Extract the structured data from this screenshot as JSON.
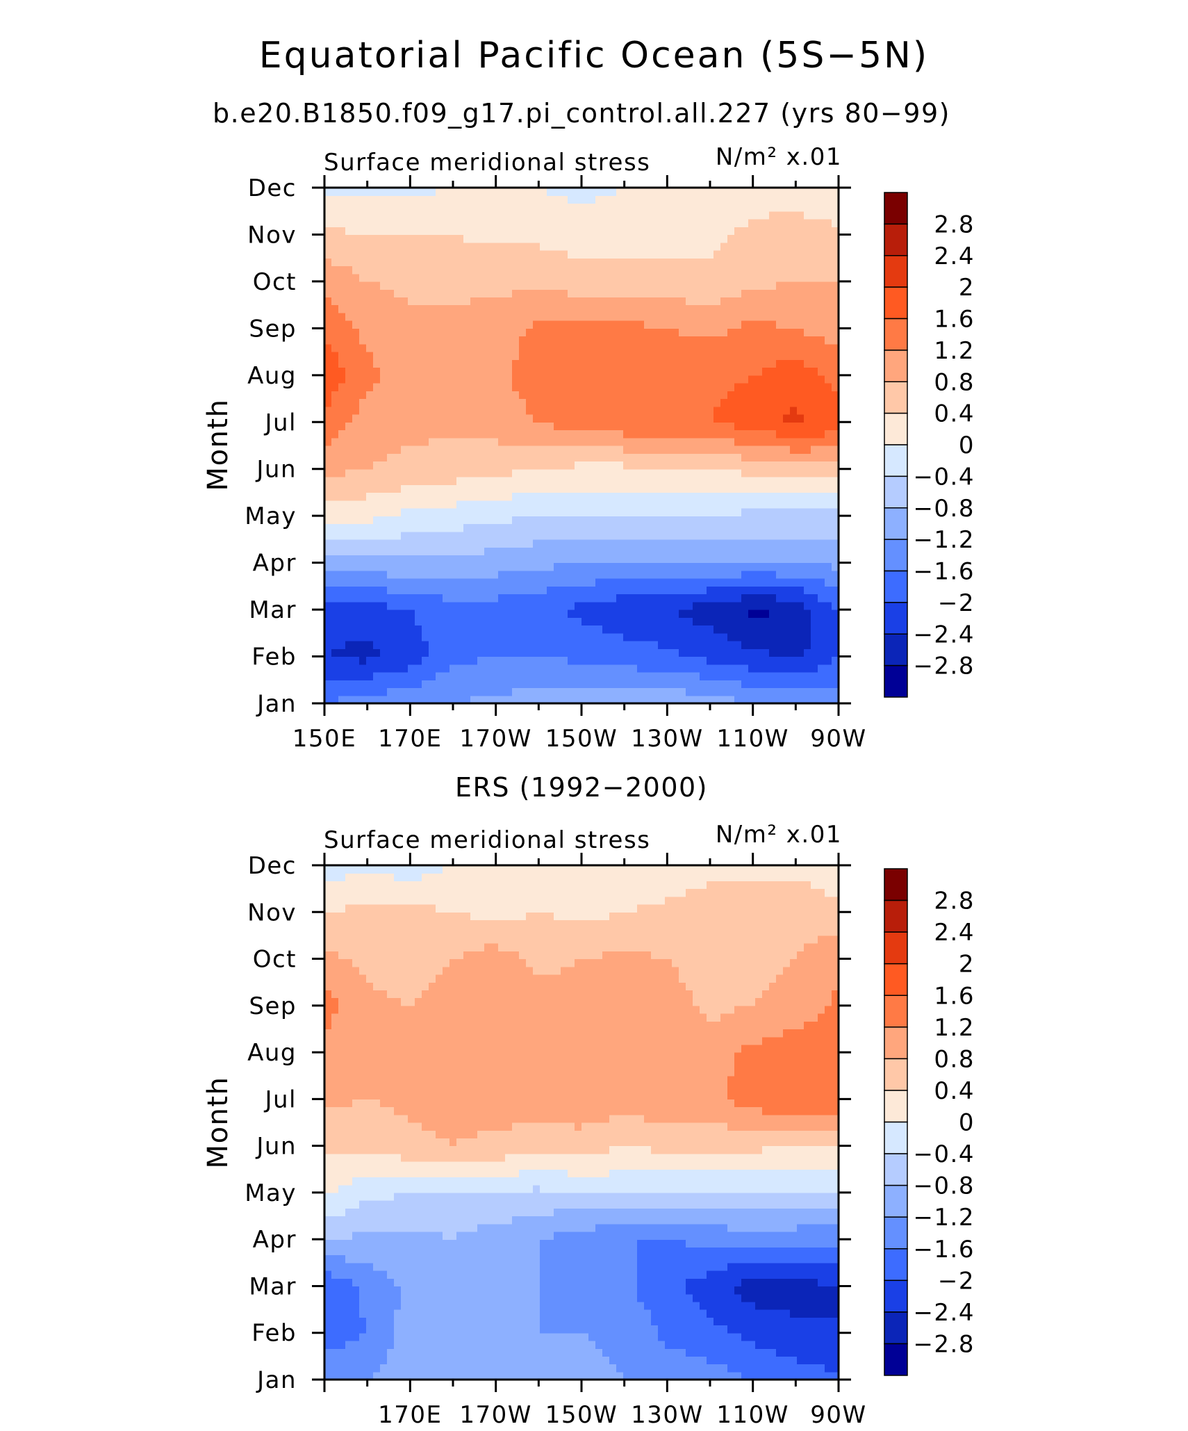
{
  "title": "Equatorial Pacific Ocean (5S−5N)",
  "chart_data": [
    {
      "type": "heatmap",
      "title": "b.e20.B1850.f09_g17.pi_control.all.227 (yrs 80−99)",
      "left_label": "Surface meridional stress",
      "right_label": "N/m² x.01",
      "ylabel": "Month",
      "x_tick_labels": [
        "150E",
        "170E",
        "170W",
        "150W",
        "130W",
        "110W",
        "90W"
      ],
      "y_tick_labels": [
        "Jan",
        "Feb",
        "Mar",
        "Apr",
        "May",
        "Jun",
        "Jul",
        "Aug",
        "Sep",
        "Oct",
        "Nov",
        "Dec"
      ],
      "x_range": [
        150,
        270
      ],
      "y_range": [
        1,
        12
      ],
      "contour_levels": [
        "2.8",
        "2.4",
        "2",
        "1.6",
        "1.2",
        "0.8",
        "0.4",
        "0",
        "−0.4",
        "−0.8",
        "−1.2",
        "−1.6",
        "−2",
        "−2.4",
        "−2.8"
      ],
      "colors": [
        "#7a0000",
        "#b81e0a",
        "#e43a10",
        "#ff5a22",
        "#ff7a45",
        "#ffa67d",
        "#ffc8a8",
        "#fde9d8",
        "#d6e8ff",
        "#b5ccff",
        "#8db0ff",
        "#6490ff",
        "#3d6cff",
        "#1a40e6",
        "#0b25b8",
        "#000096"
      ],
      "x": [
        150,
        160,
        170,
        180,
        190,
        200,
        210,
        220,
        230,
        240,
        250,
        260,
        270
      ],
      "y": [
        1,
        2,
        3,
        4,
        5,
        6,
        7,
        8,
        9,
        10,
        11,
        12
      ],
      "z": [
        [
          -1.6,
          -1.4,
          -1.3,
          -1.2,
          -1.1,
          -1.0,
          -0.9,
          -0.9,
          -0.9,
          -1.0,
          -1.2,
          -1.3,
          -1.4
        ],
        [
          -2.4,
          -2.5,
          -2.2,
          -1.7,
          -1.6,
          -1.6,
          -1.7,
          -1.8,
          -1.9,
          -2.1,
          -2.3,
          -2.5,
          -2.0
        ],
        [
          -2.3,
          -2.2,
          -2.0,
          -1.8,
          -1.8,
          -1.9,
          -2.1,
          -2.3,
          -2.4,
          -2.6,
          -2.9,
          -2.7,
          -2.0
        ],
        [
          -1.0,
          -0.9,
          -0.9,
          -0.9,
          -1.0,
          -1.1,
          -1.2,
          -1.2,
          -1.2,
          -1.2,
          -1.2,
          -1.2,
          -1.1
        ],
        [
          0.2,
          0.1,
          -0.1,
          -0.2,
          -0.3,
          -0.4,
          -0.4,
          -0.4,
          -0.4,
          -0.4,
          -0.5,
          -0.5,
          -0.5
        ],
        [
          0.9,
          0.8,
          0.7,
          0.6,
          0.5,
          0.4,
          0.3,
          0.3,
          0.3,
          0.4,
          0.5,
          0.6,
          0.7
        ],
        [
          1.5,
          1.0,
          0.9,
          0.9,
          1.0,
          1.2,
          1.4,
          1.5,
          1.5,
          1.6,
          1.8,
          2.1,
          1.8
        ],
        [
          1.9,
          1.3,
          1.0,
          1.0,
          1.1,
          1.4,
          1.5,
          1.5,
          1.5,
          1.5,
          1.6,
          1.8,
          1.5
        ],
        [
          1.5,
          1.1,
          0.9,
          0.9,
          1.0,
          1.3,
          1.3,
          1.3,
          1.2,
          1.1,
          1.3,
          1.2,
          1.0
        ],
        [
          1.1,
          0.8,
          0.7,
          0.7,
          0.7,
          0.7,
          0.6,
          0.6,
          0.6,
          0.5,
          0.7,
          0.8,
          0.8
        ],
        [
          0.5,
          0.4,
          0.4,
          0.4,
          0.3,
          0.3,
          0.2,
          0.2,
          0.2,
          0.3,
          0.5,
          0.6,
          0.5
        ],
        [
          -0.1,
          -0.1,
          -0.1,
          0.0,
          0.0,
          0.0,
          -0.1,
          0.0,
          0.1,
          0.1,
          0.2,
          0.2,
          0.0
        ]
      ]
    },
    {
      "type": "heatmap",
      "title": "ERS (1992−2000)",
      "left_label": "Surface meridional stress",
      "right_label": "N/m² x.01",
      "ylabel": "Month",
      "x_tick_labels": [
        "170E",
        "170W",
        "150W",
        "130W",
        "110W",
        "90W"
      ],
      "y_tick_labels": [
        "Jan",
        "Feb",
        "Mar",
        "Apr",
        "May",
        "Jun",
        "Jul",
        "Aug",
        "Sep",
        "Oct",
        "Nov",
        "Dec"
      ],
      "x_range": [
        150,
        270
      ],
      "y_range": [
        1,
        12
      ],
      "contour_levels": [
        "2.8",
        "2.4",
        "2",
        "1.6",
        "1.2",
        "0.8",
        "0.4",
        "0",
        "−0.4",
        "−0.8",
        "−1.2",
        "−1.6",
        "−2",
        "−2.4",
        "−2.8"
      ],
      "colors": [
        "#7a0000",
        "#b81e0a",
        "#e43a10",
        "#ff5a22",
        "#ff7a45",
        "#ffa67d",
        "#ffc8a8",
        "#fde9d8",
        "#d6e8ff",
        "#b5ccff",
        "#8db0ff",
        "#6490ff",
        "#3d6cff",
        "#1a40e6",
        "#0b25b8",
        "#000096"
      ],
      "x": [
        150,
        160,
        170,
        180,
        190,
        200,
        210,
        220,
        230,
        240,
        250,
        260,
        270
      ],
      "y": [
        1,
        2,
        3,
        4,
        5,
        6,
        7,
        8,
        9,
        10,
        11,
        12
      ],
      "z": [
        [
          -1.3,
          -1.2,
          -0.9,
          -0.8,
          -0.9,
          -1.0,
          -1.1,
          -1.2,
          -1.3,
          -1.4,
          -1.6,
          -1.8,
          -1.9
        ],
        [
          -1.8,
          -1.6,
          -1.0,
          -1.0,
          -1.2,
          -1.2,
          -1.2,
          -1.3,
          -1.7,
          -1.9,
          -2.1,
          -2.3,
          -2.4
        ],
        [
          -1.9,
          -1.5,
          -1.1,
          -1.2,
          -1.1,
          -1.2,
          -1.3,
          -1.5,
          -1.9,
          -2.2,
          -2.6,
          -2.6,
          -2.4
        ],
        [
          -0.8,
          -0.9,
          -0.9,
          -0.8,
          -1.0,
          -1.2,
          -1.4,
          -1.6,
          -1.6,
          -1.5,
          -1.4,
          -1.5,
          -1.5
        ],
        [
          0.1,
          -0.3,
          -0.4,
          -0.5,
          -0.4,
          -0.5,
          -0.4,
          -0.3,
          -0.4,
          -0.4,
          -0.4,
          -0.3,
          -0.4
        ],
        [
          0.5,
          0.5,
          0.7,
          0.8,
          0.7,
          0.6,
          0.6,
          0.4,
          0.5,
          0.5,
          0.5,
          0.3,
          0.3
        ],
        [
          0.9,
          0.8,
          0.9,
          0.9,
          1.0,
          1.0,
          1.1,
          1.0,
          1.1,
          1.1,
          1.4,
          1.6,
          1.5
        ],
        [
          1.0,
          0.8,
          0.9,
          1.0,
          1.1,
          1.0,
          1.0,
          1.1,
          1.0,
          1.0,
          1.3,
          1.5,
          1.4
        ],
        [
          1.4,
          0.9,
          0.8,
          1.0,
          1.2,
          1.0,
          0.9,
          1.0,
          1.0,
          0.7,
          0.8,
          0.9,
          1.3
        ],
        [
          0.9,
          0.7,
          0.6,
          0.8,
          1.0,
          0.7,
          0.8,
          0.9,
          0.8,
          0.6,
          0.7,
          0.8,
          1.1
        ],
        [
          0.4,
          0.5,
          0.5,
          0.4,
          0.3,
          0.4,
          0.3,
          0.4,
          0.5,
          0.7,
          0.8,
          0.7,
          0.5
        ],
        [
          -0.2,
          -0.1,
          -0.2,
          0.0,
          0.1,
          0.0,
          0.1,
          0.0,
          0.1,
          0.2,
          0.2,
          0.3,
          0.1
        ]
      ]
    }
  ]
}
